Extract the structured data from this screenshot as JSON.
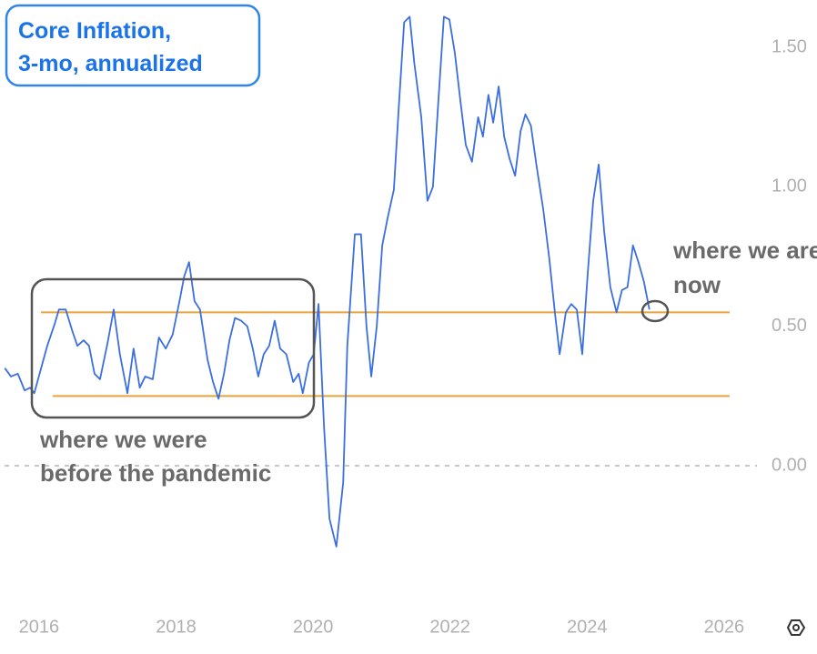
{
  "chart_data": {
    "type": "line",
    "title": [
      "Core Inflation,",
      "3-mo, annualized"
    ],
    "x": [
      2015.5,
      2015.59,
      2015.69,
      2015.79,
      2015.87,
      2015.93,
      2016.03,
      2016.12,
      2016.23,
      2016.29,
      2016.39,
      2016.49,
      2016.56,
      2016.65,
      2016.73,
      2016.81,
      2016.89,
      2017.0,
      2017.09,
      2017.18,
      2017.29,
      2017.38,
      2017.47,
      2017.55,
      2017.66,
      2017.75,
      2017.85,
      2017.95,
      2018.05,
      2018.12,
      2018.19,
      2018.27,
      2018.35,
      2018.46,
      2018.54,
      2018.62,
      2018.7,
      2018.78,
      2018.86,
      2018.95,
      2019.04,
      2019.12,
      2019.2,
      2019.28,
      2019.36,
      2019.44,
      2019.52,
      2019.61,
      2019.71,
      2019.79,
      2019.85,
      2019.94,
      2020.01,
      2020.08,
      2020.16,
      2020.24,
      2020.34,
      2020.44,
      2020.5,
      2020.61,
      2020.7,
      2020.78,
      2020.85,
      2020.93,
      2021.01,
      2021.09,
      2021.18,
      2021.25,
      2021.33,
      2021.41,
      2021.48,
      2021.58,
      2021.67,
      2021.75,
      2021.83,
      2021.91,
      2021.99,
      2022.07,
      2022.15,
      2022.23,
      2022.32,
      2022.41,
      2022.48,
      2022.56,
      2022.63,
      2022.71,
      2022.79,
      2022.87,
      2022.95,
      2023.03,
      2023.1,
      2023.18,
      2023.26,
      2023.36,
      2023.45,
      2023.53,
      2023.6,
      2023.69,
      2023.77,
      2023.85,
      2023.93,
      2024.01,
      2024.09,
      2024.17,
      2024.25,
      2024.34,
      2024.43,
      2024.51,
      2024.59,
      2024.67,
      2024.75,
      2024.83,
      2024.91
    ],
    "series": [
      {
        "color": "#3b6fe0",
        "values": [
          0.35,
          0.32,
          0.33,
          0.27,
          0.28,
          0.26,
          0.35,
          0.43,
          0.51,
          0.56,
          0.56,
          0.48,
          0.43,
          0.45,
          0.43,
          0.33,
          0.31,
          0.44,
          0.56,
          0.4,
          0.26,
          0.42,
          0.28,
          0.32,
          0.31,
          0.46,
          0.42,
          0.47,
          0.59,
          0.68,
          0.73,
          0.59,
          0.56,
          0.38,
          0.3,
          0.24,
          0.33,
          0.45,
          0.53,
          0.52,
          0.5,
          0.42,
          0.32,
          0.4,
          0.43,
          0.52,
          0.42,
          0.4,
          0.3,
          0.33,
          0.26,
          0.37,
          0.4,
          0.58,
          0.14,
          -0.19,
          -0.29,
          -0.06,
          0.43,
          0.83,
          0.83,
          0.5,
          0.32,
          0.5,
          0.79,
          0.89,
          0.99,
          1.28,
          1.59,
          1.61,
          1.44,
          1.25,
          0.95,
          1.0,
          1.31,
          1.61,
          1.6,
          1.48,
          1.31,
          1.15,
          1.09,
          1.25,
          1.18,
          1.33,
          1.23,
          1.36,
          1.18,
          1.1,
          1.04,
          1.2,
          1.26,
          1.22,
          1.08,
          0.92,
          0.74,
          0.55,
          0.4,
          0.55,
          0.58,
          0.56,
          0.4,
          0.69,
          0.95,
          1.08,
          0.84,
          0.64,
          0.55,
          0.63,
          0.64,
          0.79,
          0.73,
          0.66,
          0.56
        ]
      }
    ],
    "xlim": [
      2015.43,
      2026.52
    ],
    "xticks": [
      2016,
      2018,
      2020,
      2022,
      2024,
      2026
    ],
    "ylim": [
      -0.45,
      1.67
    ],
    "yticks": [
      {
        "value": 0,
        "label": "0.00"
      },
      {
        "value": 0.5,
        "label": "0.50"
      },
      {
        "value": 1,
        "label": "1.00"
      },
      {
        "value": 1.5,
        "label": "1.50"
      }
    ],
    "zero_line": true,
    "reference_lines": [
      {
        "value": 0.55,
        "color": "#e8a33d"
      },
      {
        "value": 0.25,
        "color": "#e8a33d"
      }
    ],
    "annotations": [
      {
        "lines": [
          "where we were",
          "before the pandemic"
        ]
      },
      {
        "lines": [
          "where we are",
          "now"
        ]
      }
    ]
  }
}
